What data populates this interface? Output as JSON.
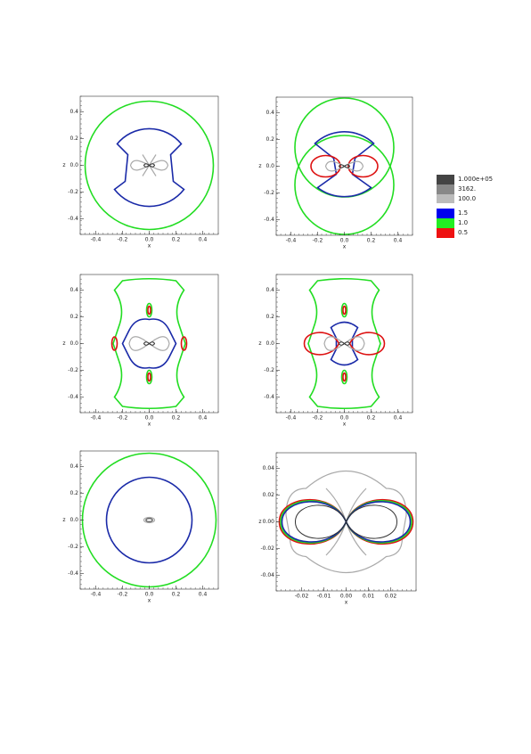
{
  "panels": [
    {
      "xticks": [
        "-0.4",
        "-0.2",
        "0.0",
        "0.2",
        "0.4"
      ],
      "yticks": [
        "0.4",
        "0.2",
        "0.0",
        "-0.2",
        "-0.4"
      ],
      "xlabel": "x",
      "ylabel": "z"
    },
    {
      "xticks": [
        "-0.4",
        "-0.2",
        "0.0",
        "0.2",
        "0.4"
      ],
      "yticks": [
        "0.4",
        "0.2",
        "0.0",
        "-0.2",
        "-0.4"
      ],
      "xlabel": "x",
      "ylabel": "z"
    },
    {
      "xticks": [
        "-0.4",
        "-0.2",
        "0.0",
        "0.2",
        "0.4"
      ],
      "yticks": [
        "0.4",
        "0.2",
        "0.0",
        "-0.2",
        "-0.4"
      ],
      "xlabel": "x",
      "ylabel": "z"
    },
    {
      "xticks": [
        "-0.4",
        "-0.2",
        "0.0",
        "0.2",
        "0.4"
      ],
      "yticks": [
        "0.4",
        "0.2",
        "0.0",
        "-0.2",
        "-0.4"
      ],
      "xlabel": "x",
      "ylabel": "z"
    },
    {
      "xticks": [
        "-0.4",
        "-0.2",
        "0.0",
        "0.2",
        "0.4"
      ],
      "yticks": [
        "0.4",
        "0.2",
        "0.0",
        "-0.2",
        "-0.4"
      ],
      "xlabel": "x",
      "ylabel": "z"
    },
    {
      "xticks": [
        "-0.02",
        "-0.01",
        "0.00",
        "0.01",
        "0.02"
      ],
      "yticks": [
        "0.04",
        "0.02",
        "0.00",
        "-0.02",
        "-0.04"
      ],
      "xlabel": "x",
      "ylabel": "z"
    }
  ],
  "legend": {
    "items": [
      "1.000e+05",
      "3162.",
      "100.0",
      "1.5",
      "1.0",
      "0.5"
    ]
  }
}
